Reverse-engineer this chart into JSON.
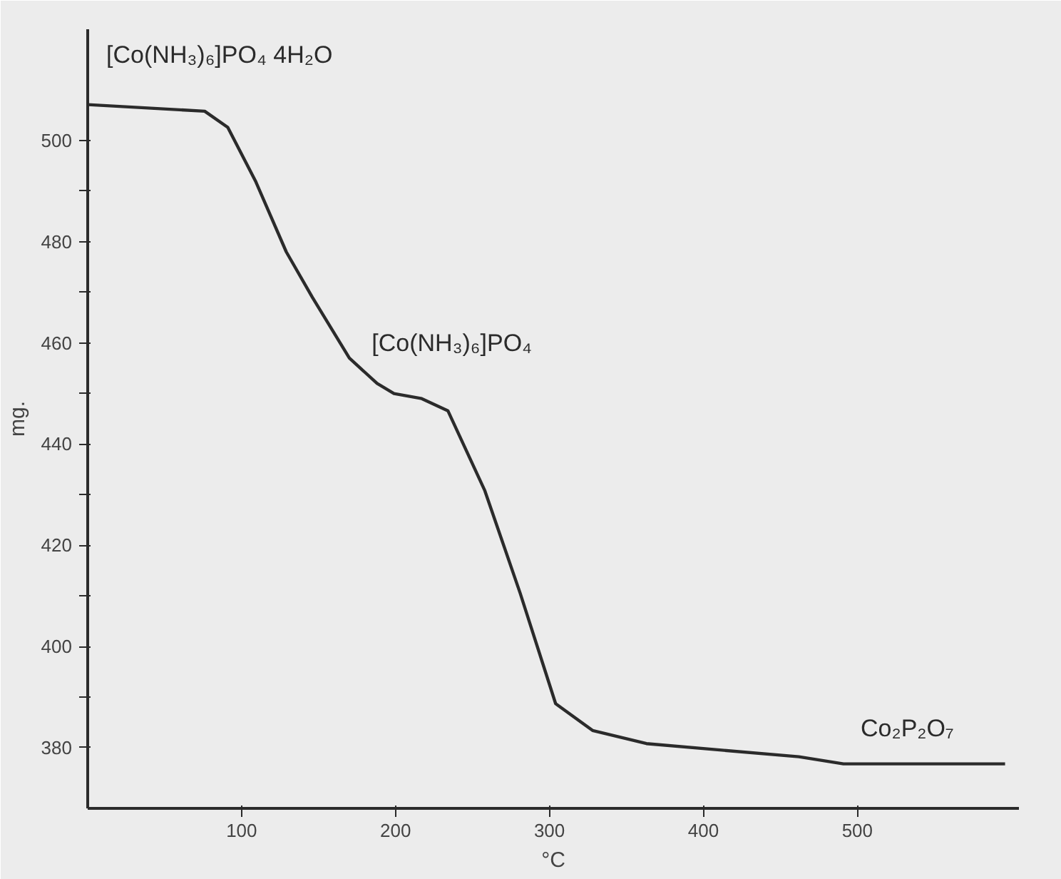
{
  "chart_data": {
    "type": "line",
    "xlabel": "°C",
    "ylabel": "mg.",
    "x": [
      0,
      76,
      91,
      109,
      129,
      146,
      170,
      188,
      199,
      217,
      234,
      258,
      281,
      304,
      328,
      363,
      462,
      491,
      596
    ],
    "series": [
      {
        "color": "#2b2b2b",
        "values": [
          507.1,
          505.8,
          502.6,
          492,
          478,
          469,
          457,
          452,
          450,
          449,
          446.6,
          430.8,
          410.5,
          388.7,
          383.4,
          380.8,
          378.2,
          376.8,
          376.8
        ]
      }
    ],
    "xlim": [
      0,
      605
    ],
    "ylim": [
      368,
      522
    ],
    "xticks": [
      100,
      200,
      300,
      400,
      500
    ],
    "yticks": [
      380,
      {
        "value": 390,
        "label": null
      },
      400,
      {
        "value": 410,
        "label": null
      },
      420,
      {
        "value": 430,
        "label": null
      },
      440,
      {
        "value": 450,
        "label": null
      },
      460,
      {
        "value": 470,
        "label": null
      },
      480,
      {
        "value": 490,
        "label": null
      },
      500
    ],
    "annotations": [
      "[Co(NH₃)₆]PO₄ 4H₂O",
      "[Co(NH₃)₆]PO₄",
      "Co₂P₂O₇"
    ],
    "grid": false,
    "marker": "none",
    "line_style": "solid"
  }
}
